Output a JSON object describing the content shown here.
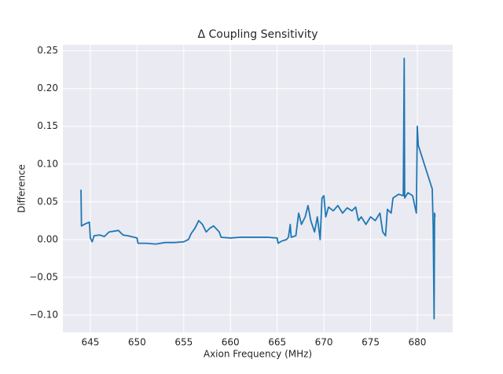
{
  "chart_data": {
    "type": "line",
    "title": "Δ Coupling Sensitivity",
    "xlabel": "Axion Frequency (MHz)",
    "ylabel": "Difference",
    "xlim": [
      642.06,
      683.79
    ],
    "ylim": [
      -0.123,
      0.258
    ],
    "xticks": [
      645,
      650,
      655,
      660,
      665,
      670,
      675,
      680
    ],
    "yticks": [
      {
        "value": -0.1,
        "label": "−0.10"
      },
      {
        "value": -0.05,
        "label": "−0.05"
      },
      {
        "value": 0,
        "label": "0.00"
      },
      {
        "value": 0.05,
        "label": "0.05"
      },
      {
        "value": 0.1,
        "label": "0.10"
      },
      {
        "value": 0.15,
        "label": "0.15"
      },
      {
        "value": 0.2,
        "label": "0.20"
      },
      {
        "value": 0.25,
        "label": "0.25"
      }
    ],
    "grid": true,
    "color": "#1f77b4",
    "x": [
      644.0,
      644.05,
      644.5,
      644.9,
      645.0,
      645.2,
      645.4,
      646,
      646.5,
      647,
      648,
      648.5,
      649,
      650,
      650.1,
      651,
      652,
      653,
      654,
      655,
      655.5,
      655.8,
      656.2,
      656.6,
      657,
      657.4,
      657.8,
      658.2,
      658.8,
      659,
      660,
      661,
      662,
      663,
      664,
      665,
      665.1,
      665.5,
      666,
      666.2,
      666.4,
      666.5,
      667,
      667.3,
      667.6,
      668,
      668.3,
      668.6,
      669,
      669.3,
      669.6,
      669.8,
      670,
      670.2,
      670.5,
      671,
      671.5,
      672,
      672.5,
      673,
      673.4,
      673.7,
      674,
      674.5,
      675,
      675.5,
      676,
      676.3,
      676.6,
      676.8,
      677.2,
      677.4,
      678,
      678.5,
      678.6,
      678.65,
      679,
      679.5,
      679.9,
      680.0,
      680.1,
      681.6,
      681.7,
      681.8,
      681.85,
      681.9
    ],
    "values": [
      0.066,
      0.018,
      0.021,
      0.023,
      0.002,
      -0.003,
      0.005,
      0.006,
      0.004,
      0.01,
      0.012,
      0.006,
      0.005,
      0.002,
      -0.005,
      -0.005,
      -0.006,
      -0.004,
      -0.004,
      -0.003,
      0.0,
      0.008,
      0.015,
      0.025,
      0.02,
      0.01,
      0.015,
      0.018,
      0.01,
      0.003,
      0.002,
      0.003,
      0.003,
      0.003,
      0.003,
      0.002,
      -0.005,
      -0.002,
      0.0,
      0.003,
      0.02,
      0.003,
      0.005,
      0.035,
      0.02,
      0.03,
      0.045,
      0.025,
      0.01,
      0.03,
      0.0,
      0.055,
      0.058,
      0.03,
      0.043,
      0.038,
      0.045,
      0.035,
      0.042,
      0.038,
      0.043,
      0.025,
      0.03,
      0.02,
      0.03,
      0.025,
      0.035,
      0.01,
      0.005,
      0.04,
      0.035,
      0.055,
      0.06,
      0.058,
      0.24,
      0.055,
      0.062,
      0.058,
      0.035,
      0.15,
      0.125,
      0.067,
      0.018,
      -0.105,
      0.035,
      0.03
    ]
  }
}
